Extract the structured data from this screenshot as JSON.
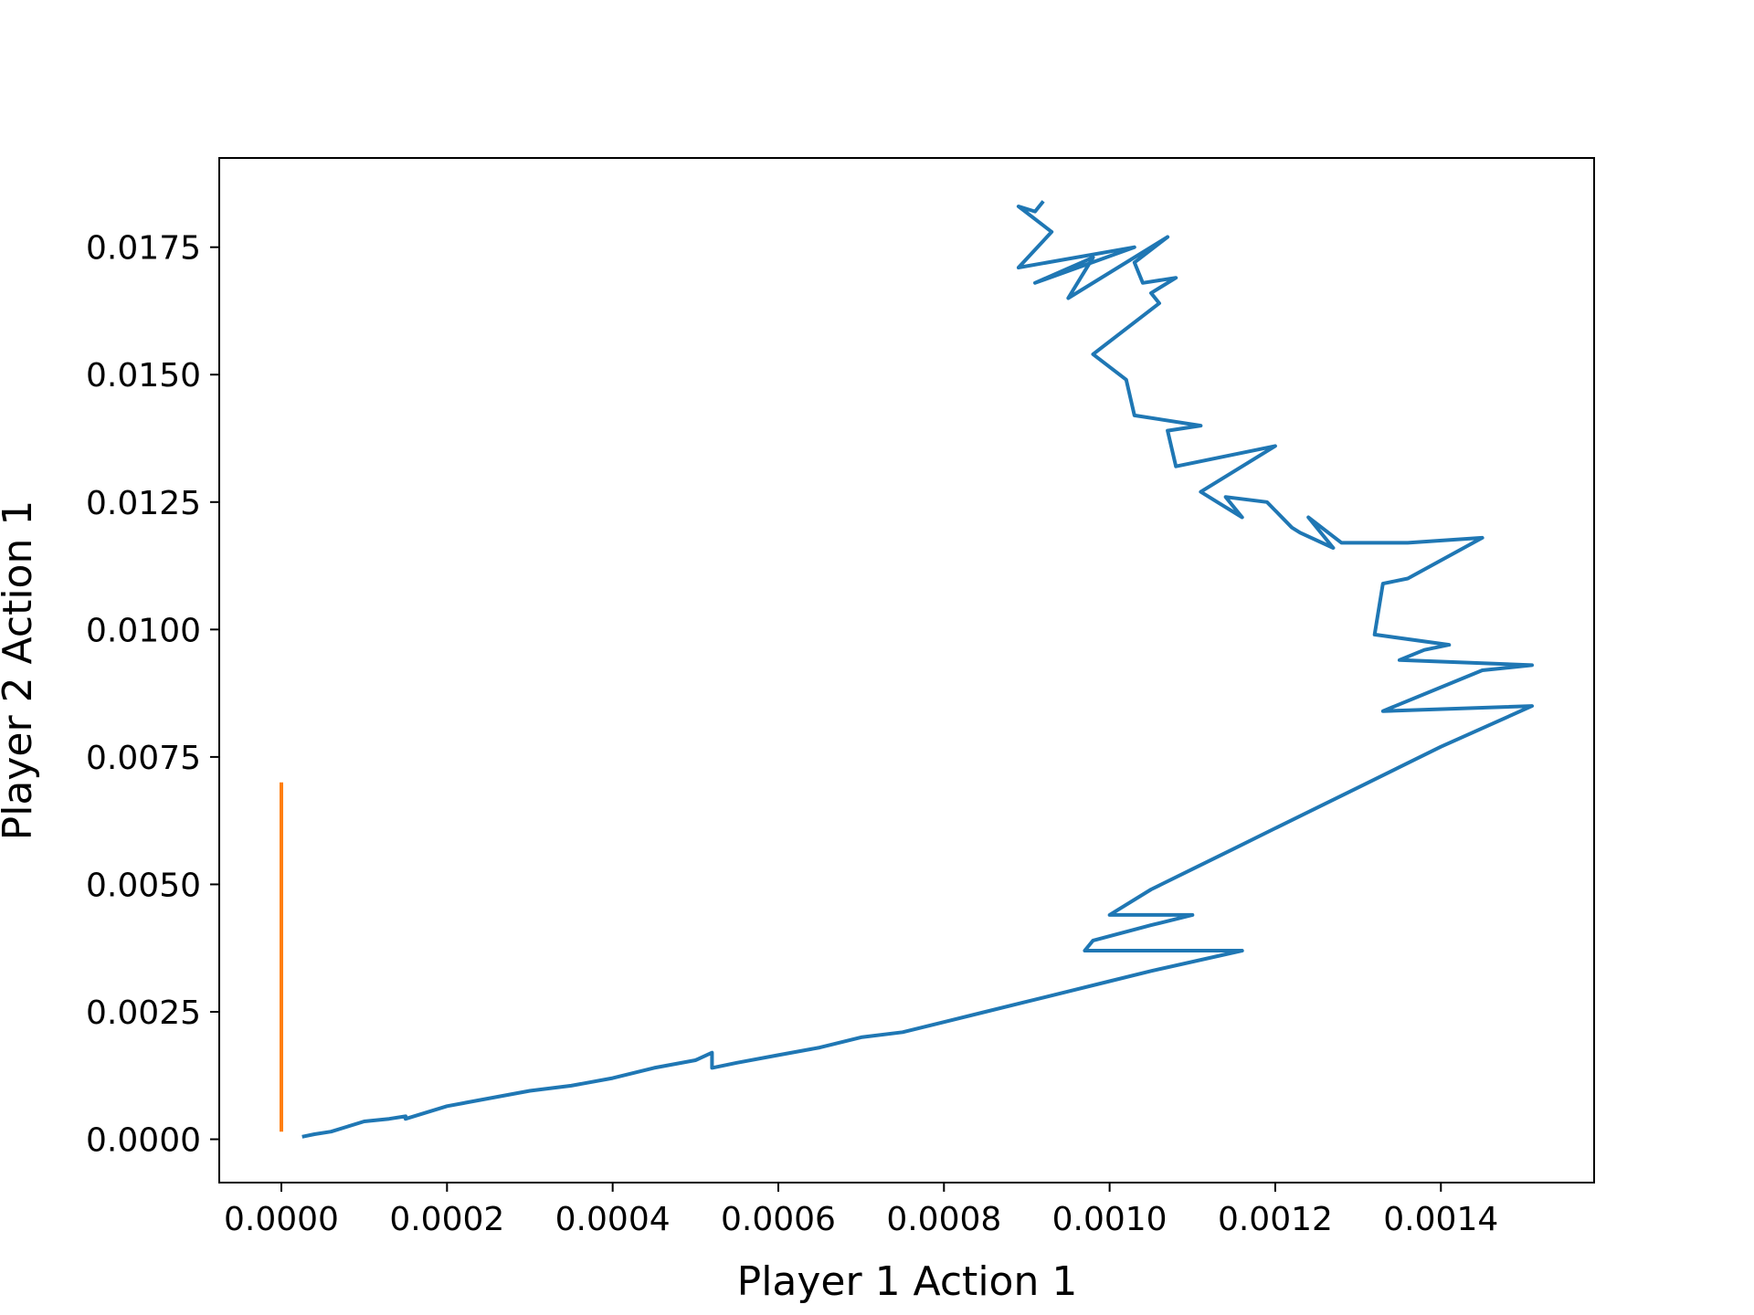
{
  "chart_data": {
    "type": "line",
    "title": "",
    "xlabel": "Player 1 Action 1",
    "ylabel": "Player 2 Action 1",
    "xlim": [
      -7.5e-05,
      0.001585
    ],
    "ylim": [
      -0.00085,
      0.01925
    ],
    "xticks": [
      0.0,
      0.0002,
      0.0004,
      0.0006,
      0.0008,
      0.001,
      0.0012,
      0.0014
    ],
    "xtick_labels": [
      "0.0000",
      "0.0002",
      "0.0004",
      "0.0006",
      "0.0008",
      "0.0010",
      "0.0012",
      "0.0014"
    ],
    "yticks": [
      0.0,
      0.0025,
      0.005,
      0.0075,
      0.01,
      0.0125,
      0.015,
      0.0175
    ],
    "ytick_labels": [
      "0.0000",
      "0.0025",
      "0.0050",
      "0.0075",
      "0.0100",
      "0.0125",
      "0.0150",
      "0.0175"
    ],
    "grid": false,
    "legend": "none",
    "series": [
      {
        "color": "#1f77b4",
        "x": [
          2.5e-05,
          4e-05,
          6e-05,
          8e-05,
          0.0001,
          0.00013,
          0.00015,
          0.00015,
          0.0002,
          0.00025,
          0.0003,
          0.00035,
          0.0004,
          0.00045,
          0.0005,
          0.00052,
          0.00052,
          0.00055,
          0.0006,
          0.00065,
          0.0007,
          0.00075,
          0.0008,
          0.00085,
          0.0009,
          0.00095,
          0.001,
          0.00105,
          0.00116,
          0.00097,
          0.00098,
          0.00105,
          0.0011,
          0.001,
          0.00105,
          0.0011,
          0.00115,
          0.0012,
          0.00125,
          0.0013,
          0.00135,
          0.0014,
          0.00151,
          0.00133,
          0.00145,
          0.00151,
          0.00135,
          0.00138,
          0.00141,
          0.00132,
          0.00133,
          0.00136,
          0.00145,
          0.00136,
          0.00128,
          0.00124,
          0.00127,
          0.00123,
          0.00122,
          0.00119,
          0.00114,
          0.00116,
          0.00113,
          0.00111,
          0.0012,
          0.00108,
          0.00107,
          0.00111,
          0.00103,
          0.00102,
          0.00098,
          0.00106,
          0.00105,
          0.00108,
          0.00104,
          0.00103,
          0.00107,
          0.00095,
          0.00098,
          0.00091,
          0.00103,
          0.00089,
          0.00093,
          0.00089,
          0.00091,
          0.00092
        ],
        "y": [
          5e-05,
          0.0001,
          0.00015,
          0.00025,
          0.00035,
          0.0004,
          0.00045,
          0.0004,
          0.00065,
          0.0008,
          0.00095,
          0.00105,
          0.0012,
          0.0014,
          0.00155,
          0.0017,
          0.0014,
          0.0015,
          0.00165,
          0.0018,
          0.002,
          0.0021,
          0.0023,
          0.0025,
          0.0027,
          0.0029,
          0.0031,
          0.0033,
          0.0037,
          0.0037,
          0.0039,
          0.0042,
          0.0044,
          0.0044,
          0.0049,
          0.0053,
          0.0057,
          0.0061,
          0.0065,
          0.0069,
          0.0073,
          0.0077,
          0.0085,
          0.0084,
          0.0092,
          0.0093,
          0.0094,
          0.0096,
          0.0097,
          0.0099,
          0.0109,
          0.011,
          0.0118,
          0.0117,
          0.0117,
          0.0122,
          0.0116,
          0.0119,
          0.012,
          0.0125,
          0.0126,
          0.0122,
          0.0125,
          0.0127,
          0.0136,
          0.0132,
          0.0139,
          0.014,
          0.0142,
          0.0149,
          0.0154,
          0.0164,
          0.0166,
          0.0169,
          0.0168,
          0.0172,
          0.0177,
          0.0165,
          0.0173,
          0.0168,
          0.0175,
          0.0171,
          0.0178,
          0.0183,
          0.0182,
          0.0184
        ]
      },
      {
        "color": "#ff7f0e",
        "x": [
          0.0,
          0.0,
          0.0,
          0.0,
          0.0
        ],
        "y": [
          0.00015,
          0.002,
          0.004,
          0.006,
          0.007
        ]
      }
    ]
  }
}
